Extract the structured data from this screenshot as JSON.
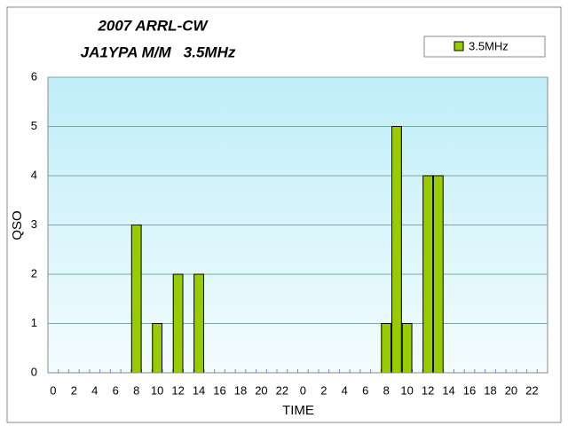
{
  "chart_data": {
    "type": "bar",
    "title": "2007 ARRL-CW",
    "subtitle": "JA1YPA M/M   3.5MHz",
    "x_label": "TIME",
    "y_label": "QSO",
    "categories": [
      "0",
      null,
      "2",
      null,
      "4",
      null,
      "6",
      null,
      "8",
      null,
      "10",
      null,
      "12",
      null,
      "14",
      null,
      "16",
      null,
      "18",
      null,
      "20",
      null,
      "22",
      null,
      "0",
      null,
      "2",
      null,
      "4",
      null,
      "6",
      null,
      "8",
      null,
      "10",
      null,
      "12",
      null,
      "14",
      null,
      "16",
      null,
      "18",
      null,
      "20",
      null,
      "22",
      null
    ],
    "series": [
      {
        "name": "3.5MHz",
        "color": "#99cc00",
        "values": [
          0,
          0,
          0,
          0,
          0,
          0,
          0,
          0,
          3,
          0,
          1,
          0,
          2,
          0,
          2,
          0,
          0,
          0,
          0,
          0,
          0,
          0,
          0,
          0,
          0,
          0,
          0,
          0,
          0,
          0,
          0,
          0,
          1,
          5,
          1,
          0,
          4,
          4,
          0,
          0,
          0,
          0,
          0,
          0,
          0,
          0,
          0,
          0
        ]
      }
    ],
    "ylim": [
      0,
      6
    ],
    "yticks": [
      0,
      1,
      2,
      3,
      4,
      5,
      6
    ],
    "grid": true,
    "legend": "top-right"
  }
}
